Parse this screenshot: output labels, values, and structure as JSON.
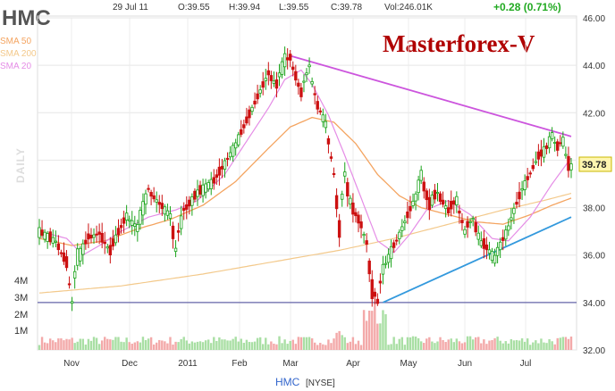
{
  "header": {
    "ticker": "HMC",
    "date": "29 Jul 11",
    "open": "O:39.55",
    "high": "H:39.94",
    "low": "L:39.55",
    "close": "C:39.78",
    "volume": "Vol:246.01K",
    "change": "+0.28 (0.71%)"
  },
  "watermark": "Masterforex-V",
  "period_label": "DAILY",
  "footer": {
    "ticker": "HMC",
    "exchange": "[NYSE]"
  },
  "last_price_label": "39.78",
  "colors": {
    "up": "#1aa31a",
    "down": "#cc1111",
    "sma50": "#f4a460",
    "sma200": "#f3c98b",
    "sma20": "#e58de6",
    "resistance": "#cc55dd",
    "support": "#3399dd",
    "baseline": "#6666aa",
    "change": "#22aa22",
    "watermark": "#b00000",
    "vol_up": "#a9dfa4",
    "vol_down": "#f3a9a9"
  },
  "chart_data": {
    "type": "candlestick",
    "title": "HMC",
    "x_labels": [
      "Nov",
      "Dec",
      "2011",
      "Feb",
      "Mar",
      "Apr",
      "May",
      "Jun",
      "Jul"
    ],
    "y_ticks": [
      "46.00",
      "44.00",
      "42.00",
      "40.00",
      "38.00",
      "36.00",
      "34.00",
      "32.00"
    ],
    "ylim": [
      32,
      46
    ],
    "volume_ticks": [
      "4M",
      "3M",
      "2M",
      "1M"
    ],
    "legend": [
      {
        "name": "SMA 50",
        "key": "sma50"
      },
      {
        "name": "SMA 200",
        "key": "sma200"
      },
      {
        "name": "SMA 20",
        "key": "sma20"
      }
    ],
    "price_path": [
      [
        0,
        37.0
      ],
      [
        6,
        36.6
      ],
      [
        10,
        35.7
      ],
      [
        12,
        34.2
      ],
      [
        14,
        35.8
      ],
      [
        18,
        36.7
      ],
      [
        22,
        36.9
      ],
      [
        26,
        36.2
      ],
      [
        32,
        37.6
      ],
      [
        36,
        37.2
      ],
      [
        40,
        38.7
      ],
      [
        44,
        38.2
      ],
      [
        48,
        37.7
      ],
      [
        50,
        36.4
      ],
      [
        53,
        37.8
      ],
      [
        58,
        38.6
      ],
      [
        64,
        39.1
      ],
      [
        68,
        39.8
      ],
      [
        72,
        40.6
      ],
      [
        76,
        41.6
      ],
      [
        80,
        42.6
      ],
      [
        84,
        43.6
      ],
      [
        87,
        43.2
      ],
      [
        90,
        44.2
      ],
      [
        92,
        44.3
      ],
      [
        96,
        42.9
      ],
      [
        99,
        43.9
      ],
      [
        102,
        42.4
      ],
      [
        105,
        41.6
      ],
      [
        108,
        39.6
      ],
      [
        110,
        37.3
      ],
      [
        112,
        39.2
      ],
      [
        115,
        38.0
      ],
      [
        118,
        37.3
      ],
      [
        120,
        36.6
      ],
      [
        122,
        34.7
      ],
      [
        124,
        34.1
      ],
      [
        126,
        35.3
      ],
      [
        129,
        36.1
      ],
      [
        132,
        36.8
      ],
      [
        135,
        37.6
      ],
      [
        138,
        38.4
      ],
      [
        140,
        39.3
      ],
      [
        143,
        38.2
      ],
      [
        146,
        38.6
      ],
      [
        150,
        37.9
      ],
      [
        153,
        38.3
      ],
      [
        156,
        37.1
      ],
      [
        159,
        37.5
      ],
      [
        162,
        36.6
      ],
      [
        165,
        36.2
      ],
      [
        167,
        35.9
      ],
      [
        170,
        36.6
      ],
      [
        172,
        37.1
      ],
      [
        174,
        37.8
      ],
      [
        177,
        38.7
      ],
      [
        180,
        39.4
      ],
      [
        183,
        40.1
      ],
      [
        186,
        40.5
      ],
      [
        188,
        41.0
      ],
      [
        190,
        40.6
      ],
      [
        192,
        40.8
      ],
      [
        194,
        39.9
      ],
      [
        195,
        39.78
      ]
    ],
    "sma20": [
      [
        0,
        37.0
      ],
      [
        10,
        36.7
      ],
      [
        16,
        36.0
      ],
      [
        22,
        36.4
      ],
      [
        30,
        37.0
      ],
      [
        40,
        37.6
      ],
      [
        50,
        37.9
      ],
      [
        58,
        38.3
      ],
      [
        68,
        39.4
      ],
      [
        76,
        40.8
      ],
      [
        84,
        42.2
      ],
      [
        90,
        43.4
      ],
      [
        96,
        43.8
      ],
      [
        100,
        43.2
      ],
      [
        106,
        41.9
      ],
      [
        112,
        40.2
      ],
      [
        118,
        38.4
      ],
      [
        124,
        36.6
      ],
      [
        130,
        36.1
      ],
      [
        136,
        36.9
      ],
      [
        142,
        37.9
      ],
      [
        150,
        38.3
      ],
      [
        158,
        37.7
      ],
      [
        166,
        36.7
      ],
      [
        172,
        36.6
      ],
      [
        180,
        37.6
      ],
      [
        188,
        39.0
      ],
      [
        195,
        40.1
      ]
    ],
    "sma50": [
      [
        0,
        36.7
      ],
      [
        12,
        36.4
      ],
      [
        24,
        36.6
      ],
      [
        36,
        37.1
      ],
      [
        48,
        37.5
      ],
      [
        60,
        38.1
      ],
      [
        72,
        39.1
      ],
      [
        84,
        40.5
      ],
      [
        92,
        41.4
      ],
      [
        100,
        41.8
      ],
      [
        108,
        41.6
      ],
      [
        116,
        40.7
      ],
      [
        124,
        39.4
      ],
      [
        132,
        38.5
      ],
      [
        140,
        38.0
      ],
      [
        150,
        37.7
      ],
      [
        160,
        37.4
      ],
      [
        170,
        37.3
      ],
      [
        180,
        37.7
      ],
      [
        188,
        38.1
      ],
      [
        195,
        38.4
      ]
    ],
    "sma200": [
      [
        0,
        34.4
      ],
      [
        30,
        34.7
      ],
      [
        60,
        35.2
      ],
      [
        90,
        35.8
      ],
      [
        110,
        36.2
      ],
      [
        130,
        36.7
      ],
      [
        150,
        37.3
      ],
      [
        170,
        37.9
      ],
      [
        185,
        38.3
      ],
      [
        195,
        38.6
      ]
    ],
    "resistance_line": [
      [
        92,
        44.4
      ],
      [
        195,
        41.0
      ]
    ],
    "support_line": [
      [
        126,
        34.0
      ],
      [
        195,
        37.6
      ]
    ],
    "baseline_level": 34.0,
    "sessions": 196
  }
}
